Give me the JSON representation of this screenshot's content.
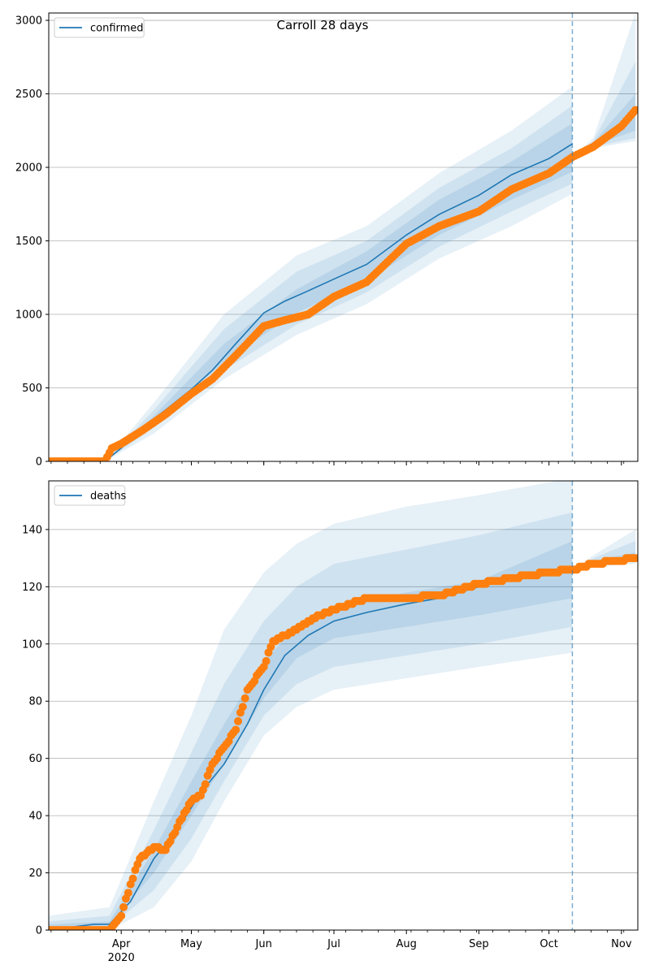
{
  "chart_data": [
    {
      "type": "line",
      "title": "Carroll 28 days",
      "legend": {
        "label": "confirmed",
        "placement": "top-left"
      },
      "ylim": [
        0,
        3050
      ],
      "yticks": [
        0,
        500,
        1000,
        1500,
        2000,
        2500,
        3000
      ],
      "grid": "y",
      "forecast_start": "2020-10-11",
      "colors": {
        "model": "#1f77b4",
        "observed": "#ff7f0e",
        "band": "#1f77b4"
      },
      "series": [
        {
          "role": "model",
          "x": [
            "2020-03-01",
            "2020-03-25",
            "2020-04-01",
            "2020-04-10",
            "2020-04-20",
            "2020-05-01",
            "2020-05-10",
            "2020-05-20",
            "2020-06-01",
            "2020-06-10",
            "2020-06-20",
            "2020-07-01",
            "2020-07-15",
            "2020-08-01",
            "2020-08-15",
            "2020-09-01",
            "2020-09-15",
            "2020-10-01",
            "2020-10-11"
          ],
          "values": [
            0,
            0,
            90,
            230,
            350,
            490,
            620,
            800,
            1010,
            1090,
            1160,
            1240,
            1340,
            1540,
            1680,
            1810,
            1950,
            2060,
            2160
          ]
        },
        {
          "role": "observed",
          "x": [
            "2020-03-01",
            "2020-03-25",
            "2020-03-28",
            "2020-04-01",
            "2020-04-10",
            "2020-04-20",
            "2020-05-01",
            "2020-05-10",
            "2020-05-20",
            "2020-06-01",
            "2020-06-10",
            "2020-06-20",
            "2020-07-01",
            "2020-07-15",
            "2020-08-01",
            "2020-08-15",
            "2020-09-01",
            "2020-09-15",
            "2020-10-01",
            "2020-10-11",
            "2020-10-20",
            "2020-11-01",
            "2020-11-07"
          ],
          "values": [
            0,
            0,
            90,
            120,
            210,
            320,
            460,
            560,
            720,
            920,
            960,
            1000,
            1120,
            1220,
            1480,
            1600,
            1700,
            1850,
            1960,
            2070,
            2140,
            2280,
            2390
          ]
        }
      ],
      "bands": [
        {
          "name": "outer",
          "x": [
            "2020-03-25",
            "2020-04-15",
            "2020-05-15",
            "2020-06-15",
            "2020-07-15",
            "2020-08-15",
            "2020-09-15",
            "2020-10-11",
            "2020-10-20",
            "2020-11-07"
          ],
          "lower": [
            0,
            190,
            560,
            860,
            1070,
            1380,
            1600,
            1820,
            2130,
            2180
          ],
          "upper": [
            0,
            400,
            1000,
            1400,
            1600,
            1960,
            2250,
            2550,
            2200,
            3050
          ]
        },
        {
          "name": "middle",
          "x": [
            "2020-03-25",
            "2020-04-15",
            "2020-05-15",
            "2020-06-15",
            "2020-07-15",
            "2020-08-15",
            "2020-09-15",
            "2020-10-11",
            "2020-10-20",
            "2020-11-07"
          ],
          "lower": [
            0,
            230,
            620,
            930,
            1150,
            1460,
            1700,
            1890,
            2140,
            2200
          ],
          "upper": [
            0,
            350,
            900,
            1290,
            1500,
            1860,
            2130,
            2420,
            2180,
            2720
          ]
        },
        {
          "name": "inner",
          "x": [
            "2020-03-25",
            "2020-04-15",
            "2020-05-15",
            "2020-06-15",
            "2020-07-15",
            "2020-08-15",
            "2020-09-15",
            "2020-10-11",
            "2020-10-20",
            "2020-11-07"
          ],
          "lower": [
            0,
            260,
            680,
            1010,
            1230,
            1540,
            1780,
            1970,
            2150,
            2250
          ],
          "upper": [
            0,
            310,
            800,
            1170,
            1430,
            1780,
            2040,
            2300,
            2170,
            2500
          ]
        }
      ]
    },
    {
      "type": "line",
      "legend": {
        "label": "deaths",
        "placement": "top-left"
      },
      "ylim": [
        0,
        157
      ],
      "yticks": [
        0,
        20,
        40,
        60,
        80,
        100,
        120,
        140
      ],
      "grid": "y",
      "forecast_start": "2020-10-11",
      "xticks": [
        {
          "date": "2020-04-01",
          "label": "Apr",
          "sublabel": "2020"
        },
        {
          "date": "2020-05-01",
          "label": "May"
        },
        {
          "date": "2020-06-01",
          "label": "Jun"
        },
        {
          "date": "2020-07-01",
          "label": "Jul"
        },
        {
          "date": "2020-08-01",
          "label": "Aug"
        },
        {
          "date": "2020-09-01",
          "label": "Sep"
        },
        {
          "date": "2020-10-01",
          "label": "Oct"
        },
        {
          "date": "2020-11-01",
          "label": "Nov"
        }
      ],
      "xlim": [
        "2020-03-01",
        "2020-11-08"
      ],
      "colors": {
        "model": "#1f77b4",
        "observed": "#ff7f0e",
        "band": "#1f77b4"
      },
      "series": [
        {
          "role": "model",
          "x": [
            "2020-03-01",
            "2020-03-20",
            "2020-03-27",
            "2020-04-05",
            "2020-04-15",
            "2020-04-25",
            "2020-05-05",
            "2020-05-15",
            "2020-05-25",
            "2020-06-01",
            "2020-06-10",
            "2020-06-20",
            "2020-07-01",
            "2020-07-15",
            "2020-08-01",
            "2020-08-15",
            "2020-09-01",
            "2020-09-15",
            "2020-10-01",
            "2020-10-11"
          ],
          "values": [
            0,
            2,
            2,
            10,
            25,
            35,
            48,
            58,
            72,
            84,
            96,
            103,
            108,
            111,
            114,
            116,
            120,
            123,
            124,
            126
          ]
        },
        {
          "role": "observed",
          "x": [
            "2020-03-01",
            "2020-03-20",
            "2020-03-27",
            "2020-04-01",
            "2020-04-05",
            "2020-04-09",
            "2020-04-15",
            "2020-04-20",
            "2020-04-25",
            "2020-05-01",
            "2020-05-05",
            "2020-05-10",
            "2020-05-15",
            "2020-05-20",
            "2020-05-25",
            "2020-06-01",
            "2020-06-05",
            "2020-06-10",
            "2020-06-15",
            "2020-06-20",
            "2020-06-25",
            "2020-07-01",
            "2020-07-15",
            "2020-08-01",
            "2020-08-15",
            "2020-09-01",
            "2020-09-15",
            "2020-10-01",
            "2020-10-11",
            "2020-10-20",
            "2020-11-07"
          ],
          "values": [
            0,
            0,
            0,
            5,
            16,
            25,
            29,
            28,
            36,
            45,
            47,
            58,
            64,
            70,
            84,
            92,
            101,
            103,
            105,
            108,
            110,
            112,
            116,
            116,
            117,
            121,
            123,
            125,
            126,
            128,
            130
          ]
        }
      ],
      "bands": [
        {
          "name": "outer",
          "x": [
            "2020-03-01",
            "2020-03-27",
            "2020-04-15",
            "2020-05-01",
            "2020-05-15",
            "2020-06-01",
            "2020-06-15",
            "2020-07-01",
            "2020-08-01",
            "2020-09-01",
            "2020-10-11",
            "2020-10-20",
            "2020-11-07"
          ],
          "lower": [
            0,
            0,
            8,
            24,
            45,
            68,
            78,
            84,
            88,
            92,
            97,
            127,
            128
          ],
          "upper": [
            5,
            8,
            45,
            75,
            105,
            125,
            135,
            142,
            148,
            152,
            158,
            131,
            140
          ]
        },
        {
          "name": "middle",
          "x": [
            "2020-03-01",
            "2020-03-27",
            "2020-04-15",
            "2020-05-01",
            "2020-05-15",
            "2020-06-01",
            "2020-06-15",
            "2020-07-01",
            "2020-08-01",
            "2020-09-01",
            "2020-10-11",
            "2020-10-20",
            "2020-11-07"
          ],
          "lower": [
            0,
            1,
            14,
            32,
            52,
            75,
            86,
            92,
            96,
            100,
            106,
            127,
            129
          ],
          "upper": [
            3,
            5,
            35,
            62,
            86,
            108,
            120,
            128,
            133,
            138,
            146,
            130,
            136
          ]
        },
        {
          "name": "inner",
          "x": [
            "2020-03-01",
            "2020-03-27",
            "2020-04-15",
            "2020-05-01",
            "2020-05-15",
            "2020-06-01",
            "2020-06-15",
            "2020-07-01",
            "2020-08-01",
            "2020-09-01",
            "2020-10-11",
            "2020-10-20",
            "2020-11-07"
          ],
          "lower": [
            0,
            2,
            20,
            40,
            58,
            81,
            95,
            102,
            106,
            110,
            116,
            127,
            129
          ],
          "upper": [
            2,
            3,
            28,
            52,
            72,
            94,
            106,
            113,
            118,
            122,
            136,
            129,
            132
          ]
        }
      ]
    }
  ]
}
